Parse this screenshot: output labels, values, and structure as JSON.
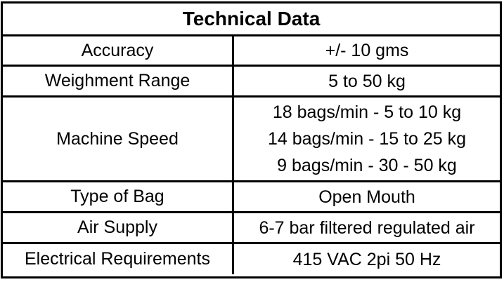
{
  "table": {
    "title": "Technical Data",
    "rows": [
      {
        "label": "Accuracy",
        "values": [
          "+/- 10 gms"
        ]
      },
      {
        "label": "Weighment Range",
        "values": [
          "5 to 50 kg"
        ]
      },
      {
        "label": "Machine Speed",
        "values": [
          "18 bags/min - 5 to 10 kg",
          "14 bags/min - 15 to 25 kg",
          "9 bags/min - 30 - 50 kg"
        ]
      },
      {
        "label": "Type of Bag",
        "values": [
          "Open Mouth"
        ]
      },
      {
        "label": "Air Supply",
        "values": [
          "6-7 bar filtered regulated air"
        ]
      },
      {
        "label": "Electrical Requirements",
        "values": [
          "415 VAC 2pi 50 Hz"
        ]
      }
    ]
  }
}
